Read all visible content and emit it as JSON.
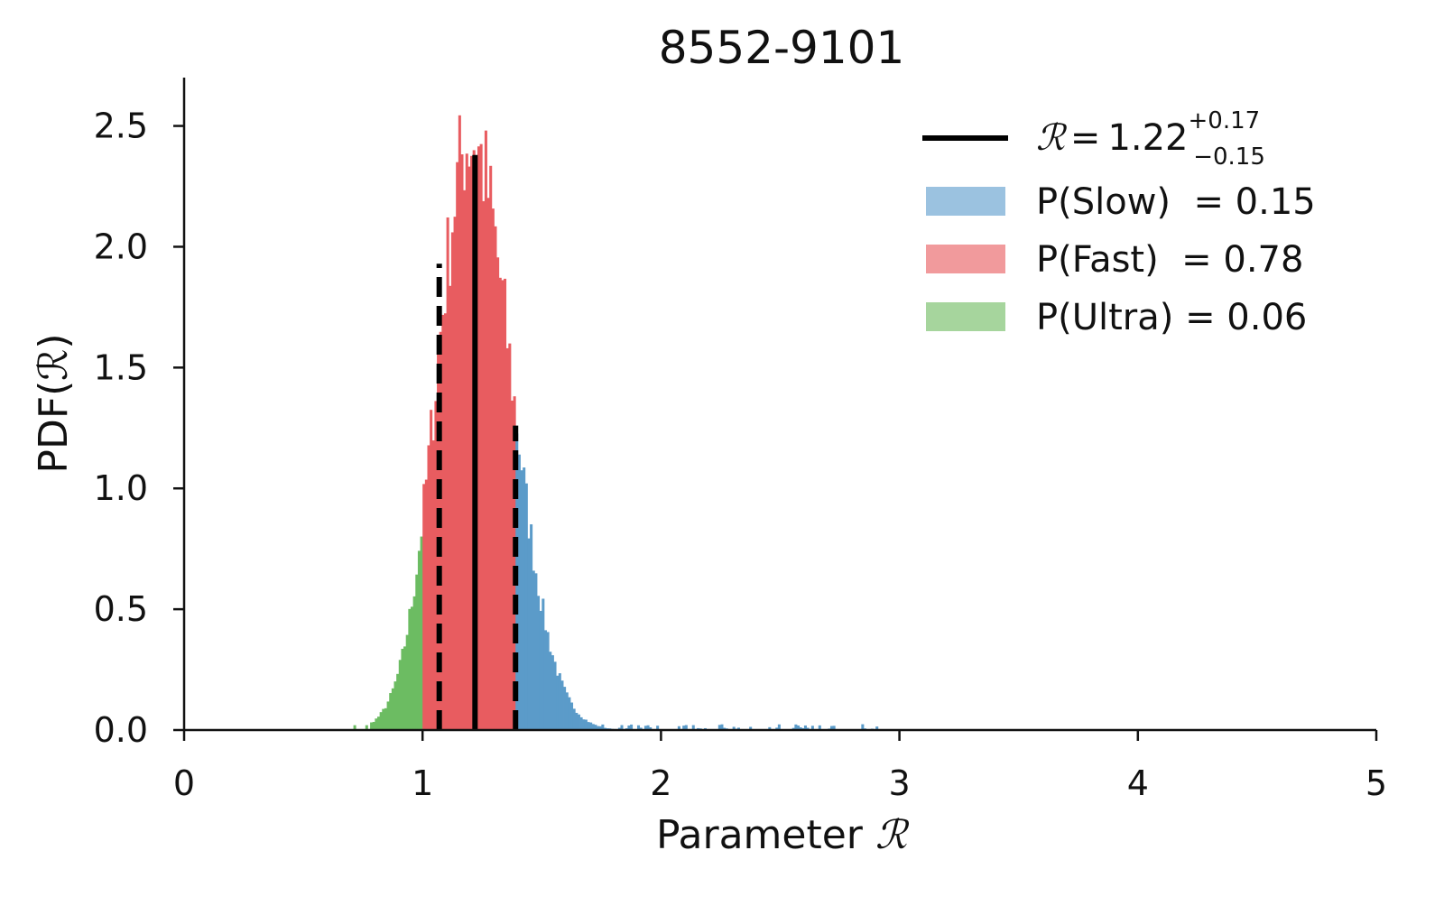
{
  "chart_data": {
    "type": "histogram",
    "title": "8552-9101",
    "xlabel_prefix": "Parameter",
    "ylabel": "PDF(ℛ)",
    "param_symbol": "ℛ",
    "xlim": [
      0,
      5
    ],
    "ylim": [
      0,
      2.7
    ],
    "xticks": [
      0,
      1,
      2,
      3,
      4,
      5
    ],
    "yticks": [
      0.0,
      0.5,
      1.0,
      1.5,
      2.0,
      2.5
    ],
    "ytick_labels": [
      "0.0",
      "0.5",
      "1.0",
      "1.5",
      "2.0",
      "2.5"
    ],
    "grid": false,
    "legend_position": "top-right",
    "bin_width": 0.01,
    "median": {
      "value": 1.22,
      "plus": "+0.17",
      "minus": "−0.15",
      "lower": 1.07,
      "upper": 1.39,
      "color": "#000000",
      "label_value": "1.22"
    },
    "series": [
      {
        "name": "P(Slow)  = 0.15",
        "color": "#5b9bc9",
        "legend_color": "#9bc2e0",
        "range": [
          1.39,
          5.0
        ]
      },
      {
        "name": "P(Fast)  = 0.78",
        "color": "#e85c60",
        "legend_color": "#f19a9c",
        "range": [
          1.0,
          1.39
        ]
      },
      {
        "name": "P(Ultra) = 0.06",
        "color": "#6cbc62",
        "legend_color": "#a6d59d",
        "range": [
          0.0,
          1.0
        ]
      }
    ],
    "distribution": {
      "peak_x": 1.2,
      "peak_density": 2.45,
      "sigma_left": 0.14,
      "sigma_right": 0.17,
      "tail_density": 0.005
    }
  }
}
